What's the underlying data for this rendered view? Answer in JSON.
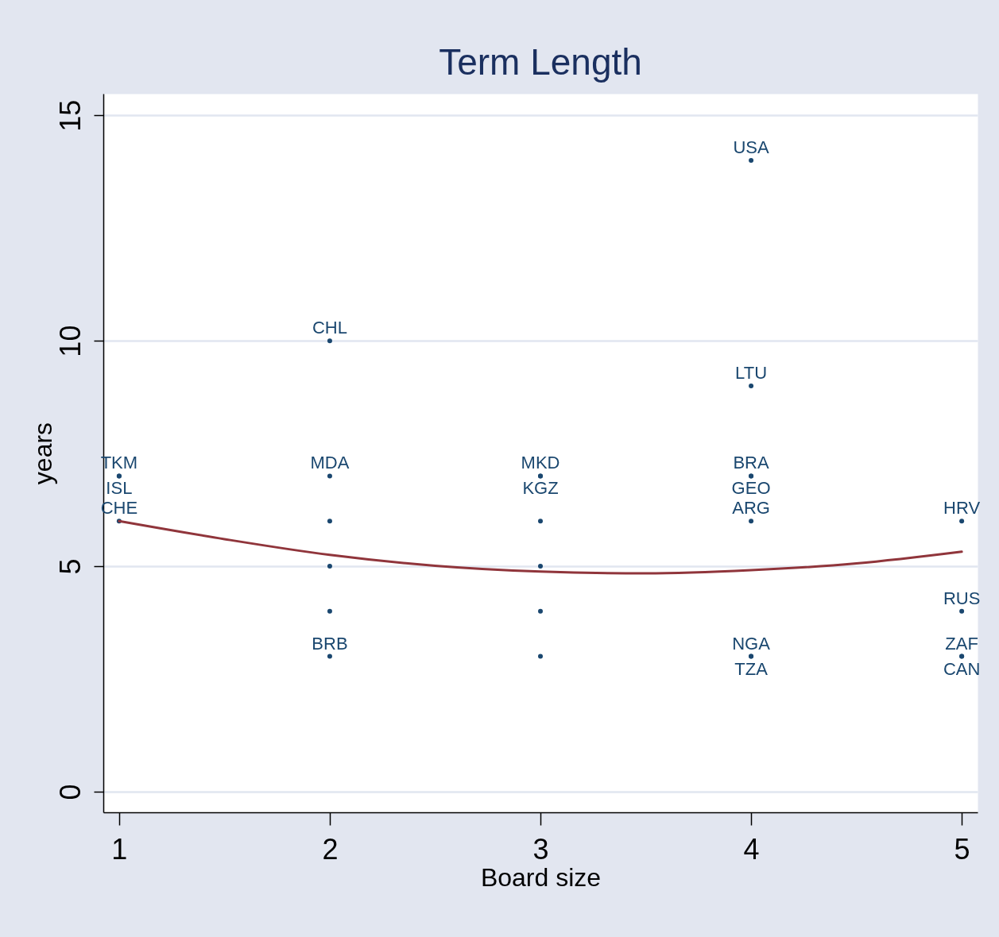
{
  "chart_data": {
    "type": "scatter",
    "title": "Term Length",
    "xlabel": "Board size",
    "ylabel": "years",
    "xlim": [
      0.925,
      5.075
    ],
    "ylim": [
      -0.46,
      15.48
    ],
    "xticks": [
      1,
      2,
      3,
      4,
      5
    ],
    "yticks": [
      0,
      5,
      10,
      15
    ],
    "grid": "y",
    "series": [
      {
        "color": "#1a476f",
        "marker": "circle",
        "x": [
          1,
          1,
          1,
          2,
          2,
          2,
          2,
          2,
          2,
          3,
          3,
          3,
          3,
          3,
          3,
          4,
          4,
          4,
          4,
          4,
          4,
          4,
          5,
          5,
          5,
          5
        ],
        "values": [
          7,
          7,
          6,
          10,
          7,
          6,
          5,
          4,
          3,
          7,
          7,
          6,
          5,
          4,
          3,
          14,
          9,
          7,
          7,
          6,
          3,
          3,
          6,
          4,
          3,
          3
        ],
        "value_labels": [
          "TKM",
          "ISL",
          "CHE",
          "CHL",
          "MDA",
          null,
          null,
          null,
          "BRB",
          "MKD",
          "KGZ",
          null,
          null,
          null,
          null,
          "USA",
          "LTU",
          "BRA",
          "GEO",
          "ARG",
          "NGA",
          "TZA",
          "HRV",
          "RUS",
          "ZAF",
          "CAN"
        ]
      },
      {
        "type": "line",
        "color": "#90353b",
        "x": [
          1,
          1.5,
          2,
          2.5,
          3,
          3.5,
          4,
          4.5,
          5
        ],
        "values": [
          6.0,
          5.6,
          5.25,
          5.01,
          4.88,
          4.84,
          4.91,
          5.06,
          5.32
        ]
      }
    ]
  }
}
